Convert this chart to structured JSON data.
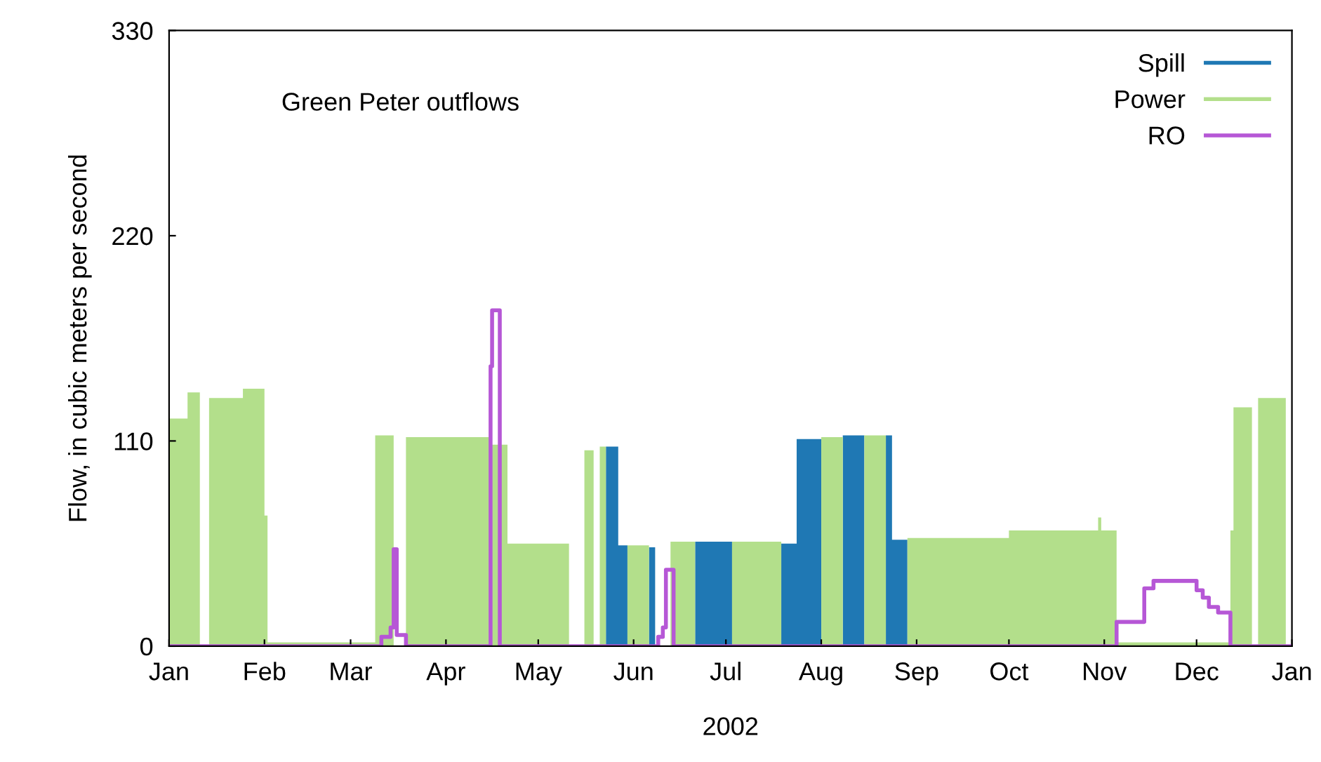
{
  "chart_data": {
    "type": "area",
    "xlabel": "2002",
    "ylabel": "Flow, in cubic meters per second",
    "annotations": [
      "Green Peter outflows"
    ],
    "xlim": [
      "2002-01-01",
      "2003-01-01"
    ],
    "xticks": [
      {
        "value": "2002-01-01",
        "label": "Jan"
      },
      {
        "value": "2002-02-01",
        "label": "Feb"
      },
      {
        "value": "2002-03-01",
        "label": "Mar"
      },
      {
        "value": "2002-04-01",
        "label": "Apr"
      },
      {
        "value": "2002-05-01",
        "label": "May"
      },
      {
        "value": "2002-06-01",
        "label": "Jun"
      },
      {
        "value": "2002-07-01",
        "label": "Jul"
      },
      {
        "value": "2002-08-01",
        "label": "Aug"
      },
      {
        "value": "2002-09-01",
        "label": "Sep"
      },
      {
        "value": "2002-10-01",
        "label": "Oct"
      },
      {
        "value": "2002-11-01",
        "label": "Nov"
      },
      {
        "value": "2002-12-01",
        "label": "Dec"
      },
      {
        "value": "2003-01-01",
        "label": "Jan"
      }
    ],
    "ylim": [
      0,
      330
    ],
    "yticks": [
      0,
      110,
      220,
      330
    ],
    "grid": false,
    "legend": "top right",
    "series": [
      {
        "name": "Power",
        "color": "#b3df8b",
        "x": [
          "2002-01-01",
          "2002-01-07",
          "2002-01-11",
          "2002-01-14",
          "2002-01-25",
          "2002-02-01",
          "2002-02-02",
          "2002-03-09",
          "2002-03-15",
          "2002-03-19",
          "2002-04-15",
          "2002-04-16",
          "2002-04-21",
          "2002-05-11",
          "2002-05-16",
          "2002-05-19",
          "2002-05-21",
          "2002-05-23",
          "2002-05-30",
          "2002-06-06",
          "2002-06-13",
          "2002-06-21",
          "2002-07-03",
          "2002-07-19",
          "2002-08-01",
          "2002-08-08",
          "2002-08-15",
          "2002-08-22",
          "2002-08-29",
          "2002-10-01",
          "2002-10-30",
          "2002-10-31",
          "2002-11-05",
          "2002-12-12",
          "2002-12-13",
          "2002-12-19",
          "2002-12-21",
          "2002-12-30",
          "2003-01-01"
        ],
        "values": [
          122,
          136,
          0,
          133,
          138,
          70,
          2,
          113,
          0,
          112,
          0,
          108,
          55,
          0,
          105,
          0,
          107,
          0,
          54,
          0,
          56,
          0,
          56,
          0,
          112,
          0,
          113,
          0,
          58,
          62,
          69,
          62,
          2,
          62,
          128,
          0,
          133,
          0,
          0
        ]
      },
      {
        "name": "Spill",
        "color": "#1f78b4",
        "x": [
          "2002-01-01",
          "2002-05-23",
          "2002-05-27",
          "2002-05-30",
          "2002-06-06",
          "2002-06-08",
          "2002-06-21",
          "2002-07-03",
          "2002-07-19",
          "2002-07-24",
          "2002-08-01",
          "2002-08-08",
          "2002-08-15",
          "2002-08-22",
          "2002-08-24",
          "2002-08-29",
          "2003-01-01"
        ],
        "values": [
          0,
          107,
          54,
          0,
          53,
          0,
          56,
          0,
          55,
          111,
          0,
          113,
          0,
          113,
          57,
          0,
          0
        ]
      },
      {
        "name": "RO",
        "type": "step",
        "color": "#b657d6",
        "x": [
          "2002-01-01",
          "2002-03-11",
          "2002-03-14",
          "2002-03-15",
          "2002-03-16",
          "2002-03-19",
          "2002-04-15",
          "2002-04-15T12:00",
          "2002-04-16",
          "2002-04-18T12:00",
          "2002-06-09",
          "2002-06-10T12:00",
          "2002-06-11T12:00",
          "2002-06-14",
          "2002-11-05",
          "2002-11-14",
          "2002-11-17",
          "2002-12-01",
          "2002-12-03",
          "2002-12-05",
          "2002-12-08",
          "2002-12-12",
          "2003-01-01"
        ],
        "values": [
          0,
          5,
          10,
          52,
          6,
          0,
          0,
          150,
          180,
          0,
          5,
          10,
          41,
          0,
          13,
          31,
          35,
          30,
          26,
          21,
          18,
          0,
          0
        ]
      }
    ]
  }
}
